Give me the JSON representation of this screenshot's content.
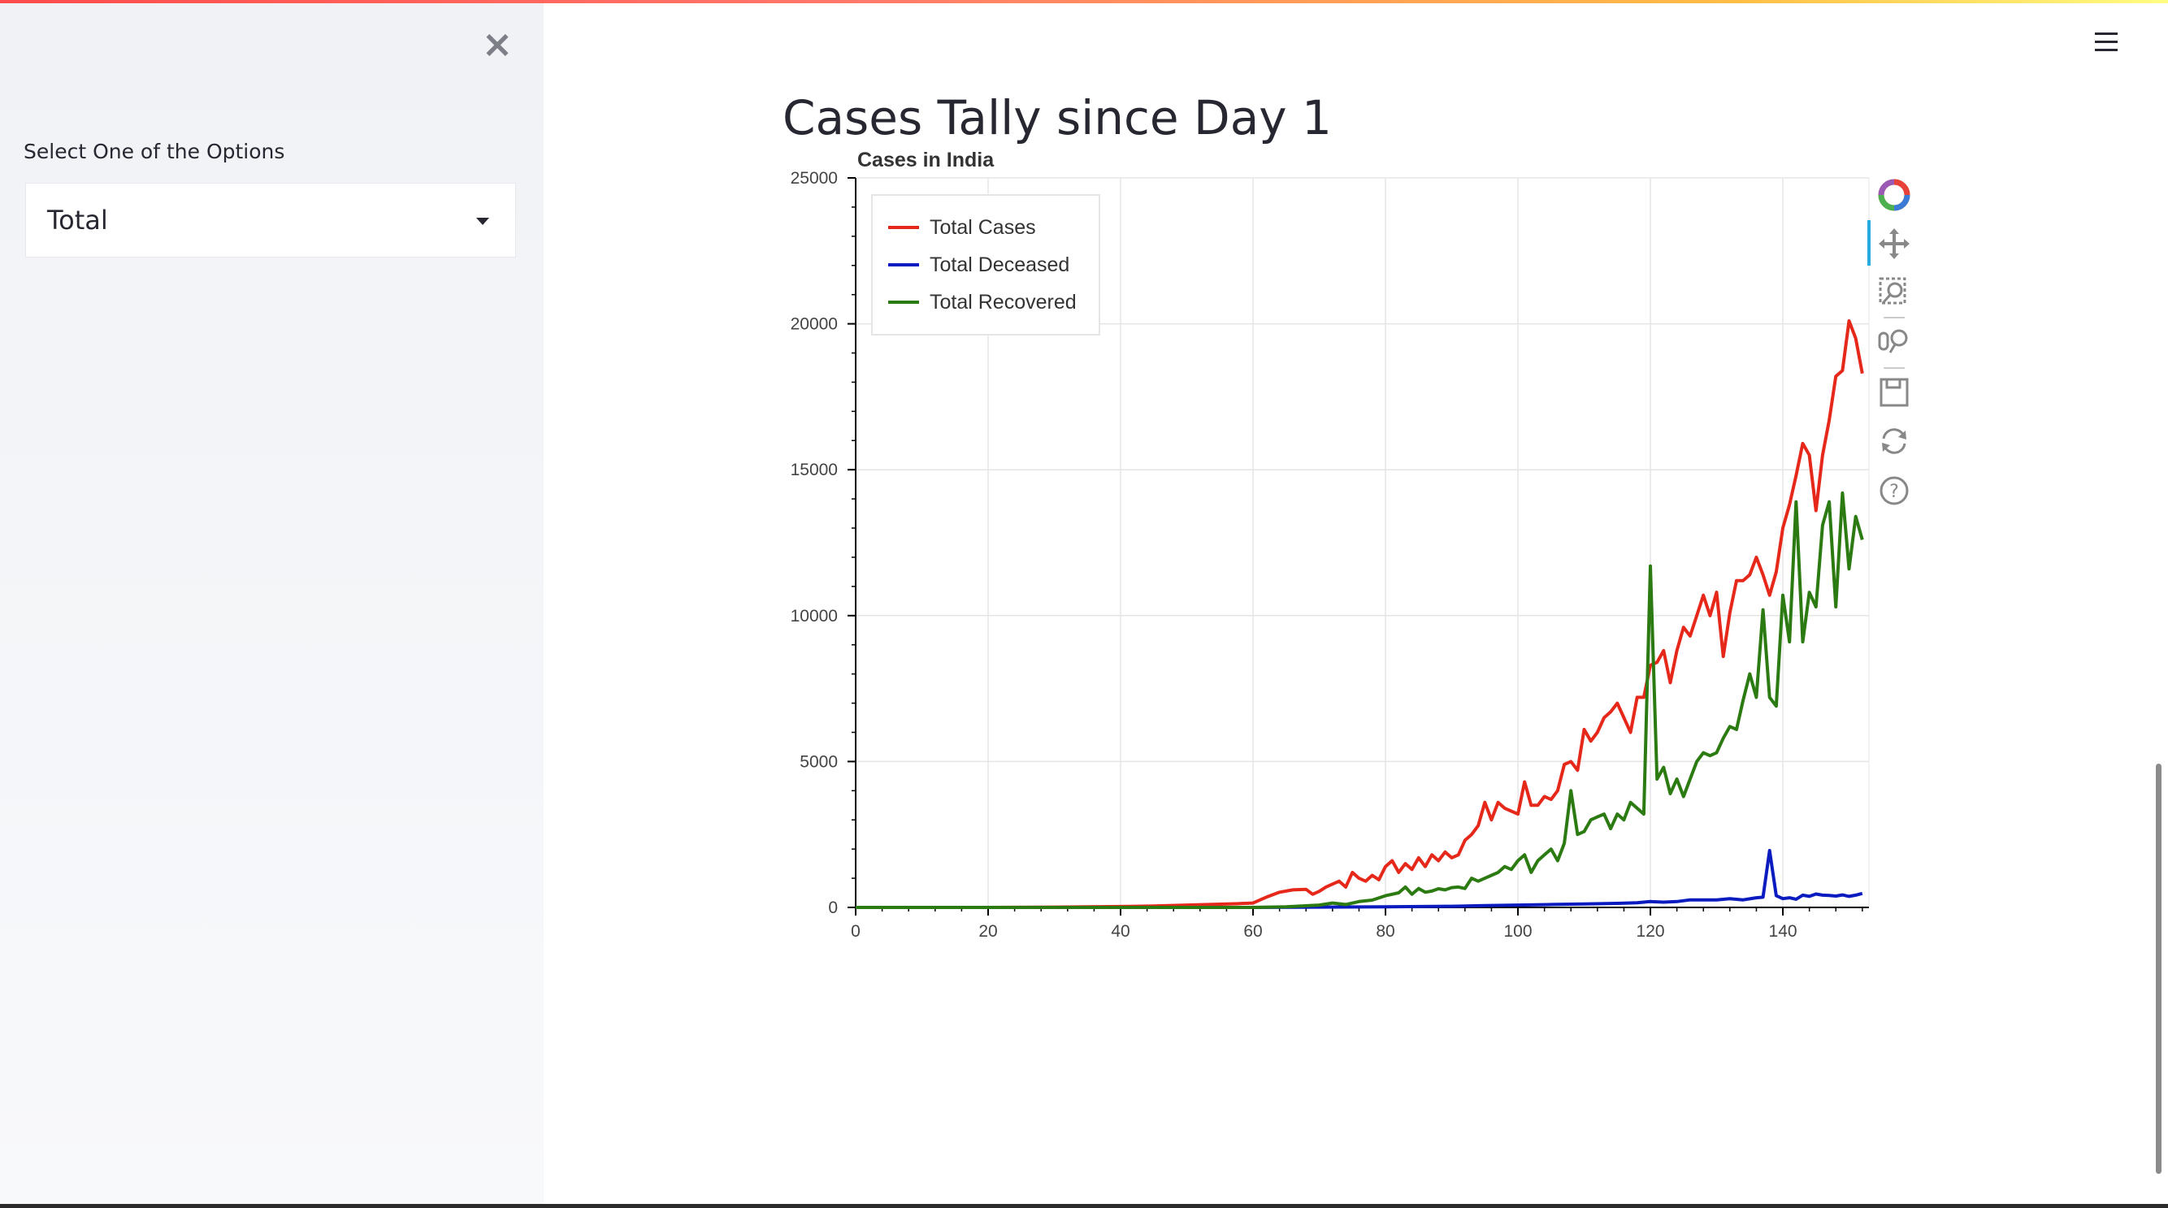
{
  "sidebar": {
    "close_icon": "close-icon",
    "select_label": "Select One of the Options",
    "select_value": "Total"
  },
  "header": {
    "menu_icon": "hamburger-menu-icon"
  },
  "main": {
    "title": "Cases Tally since Day 1"
  },
  "toolbar": {
    "tools": [
      "bokeh-logo-icon",
      "pan-icon",
      "box-zoom-icon",
      "wheel-zoom-icon",
      "save-icon",
      "reset-icon",
      "help-icon"
    ]
  },
  "chart_data": {
    "type": "line",
    "title": "Cases in India",
    "xlabel": "",
    "ylabel": "",
    "xlim": [
      0,
      153
    ],
    "ylim": [
      0,
      25000
    ],
    "xticks": [
      0,
      20,
      40,
      60,
      80,
      100,
      120,
      140
    ],
    "yticks": [
      0,
      5000,
      10000,
      15000,
      20000,
      25000
    ],
    "grid": true,
    "legend_position": "top-left",
    "series": [
      {
        "name": "Total Cases",
        "color": "#e5281a",
        "x": [
          0,
          10,
          20,
          30,
          35,
          40,
          45,
          50,
          55,
          58,
          60,
          62,
          64,
          66,
          68,
          69,
          70,
          71,
          72,
          73,
          74,
          75,
          76,
          77,
          78,
          79,
          80,
          81,
          82,
          83,
          84,
          85,
          86,
          87,
          88,
          89,
          90,
          91,
          92,
          93,
          94,
          95,
          96,
          97,
          98,
          99,
          100,
          101,
          102,
          103,
          104,
          105,
          106,
          107,
          108,
          109,
          110,
          111,
          112,
          113,
          114,
          115,
          116,
          117,
          118,
          119,
          120,
          121,
          122,
          123,
          124,
          125,
          126,
          127,
          128,
          129,
          130,
          131,
          132,
          133,
          134,
          135,
          136,
          137,
          138,
          139,
          140,
          141,
          142,
          143,
          144,
          145,
          146,
          147,
          148,
          149,
          150,
          151,
          152
        ],
        "y": [
          0,
          0,
          0,
          10,
          20,
          30,
          50,
          80,
          110,
          130,
          150,
          350,
          520,
          600,
          620,
          450,
          550,
          700,
          800,
          900,
          700,
          1200,
          1000,
          900,
          1100,
          950,
          1400,
          1600,
          1200,
          1500,
          1300,
          1700,
          1400,
          1800,
          1600,
          1900,
          1700,
          1800,
          2300,
          2500,
          2800,
          3600,
          3000,
          3600,
          3400,
          3300,
          3200,
          4300,
          3500,
          3500,
          3800,
          3700,
          4000,
          4900,
          5000,
          4700,
          6100,
          5700,
          6000,
          6500,
          6700,
          7000,
          6500,
          6000,
          7200,
          7200,
          8300,
          8400,
          8800,
          7700,
          8800,
          9600,
          9300,
          10000,
          10700,
          10000,
          10800,
          8600,
          10100,
          11200,
          11200,
          11400,
          12000,
          11400,
          10700,
          11500,
          13000,
          13800,
          14800,
          15900,
          15500,
          13600,
          15500,
          16700,
          18200,
          18400,
          20100,
          19500,
          18300
        ],
        "mark_type": "polyline"
      },
      {
        "name": "Total Deceased",
        "color": "#0a1bbf",
        "x": [
          0,
          40,
          60,
          70,
          80,
          90,
          95,
          100,
          105,
          110,
          115,
          118,
          120,
          122,
          124,
          126,
          128,
          130,
          132,
          134,
          136,
          137,
          138,
          139,
          140,
          141,
          142,
          143,
          144,
          145,
          146,
          147,
          148,
          149,
          150,
          151,
          152
        ],
        "y": [
          0,
          0,
          0,
          10,
          20,
          40,
          60,
          80,
          100,
          120,
          140,
          160,
          200,
          180,
          200,
          260,
          260,
          260,
          300,
          260,
          330,
          350,
          1950,
          400,
          300,
          330,
          280,
          420,
          380,
          460,
          420,
          410,
          390,
          430,
          380,
          420,
          480
        ],
        "mark_type": "polyline"
      },
      {
        "name": "Total Recovered",
        "color": "#2c7a12",
        "x": [
          0,
          40,
          60,
          65,
          70,
          72,
          74,
          76,
          78,
          80,
          81,
          82,
          83,
          84,
          85,
          86,
          87,
          88,
          89,
          90,
          91,
          92,
          93,
          94,
          95,
          96,
          97,
          98,
          99,
          100,
          101,
          102,
          103,
          104,
          105,
          106,
          107,
          108,
          109,
          110,
          111,
          112,
          113,
          114,
          115,
          116,
          117,
          118,
          119,
          120,
          121,
          122,
          123,
          124,
          125,
          126,
          127,
          128,
          129,
          130,
          131,
          132,
          133,
          134,
          135,
          136,
          137,
          138,
          139,
          140,
          141,
          142,
          143,
          144,
          145,
          146,
          147,
          148,
          149,
          150,
          151,
          152
        ],
        "y": [
          0,
          0,
          0,
          20,
          80,
          150,
          100,
          200,
          250,
          400,
          450,
          500,
          700,
          450,
          650,
          520,
          560,
          640,
          600,
          680,
          700,
          650,
          1000,
          900,
          1000,
          1100,
          1200,
          1400,
          1300,
          1600,
          1800,
          1200,
          1600,
          1800,
          2000,
          1600,
          2200,
          4000,
          2500,
          2600,
          3000,
          3100,
          3200,
          2700,
          3200,
          3000,
          3600,
          3400,
          3200,
          11700,
          4400,
          4800,
          3900,
          4400,
          3800,
          4400,
          5000,
          5300,
          5200,
          5300,
          5800,
          6200,
          6100,
          7100,
          8000,
          7200,
          10200,
          7200,
          6900,
          10700,
          9100,
          13900,
          9100,
          10800,
          10300,
          13100,
          13900,
          10300,
          14200,
          11600,
          13400,
          12600
        ],
        "mark_type": "polyline"
      }
    ]
  }
}
